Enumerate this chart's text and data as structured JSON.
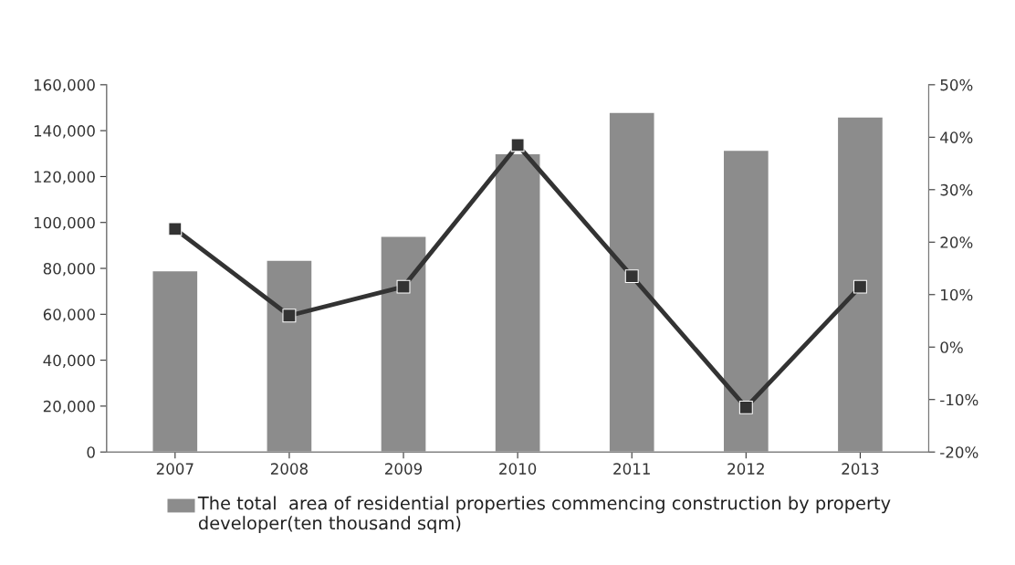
{
  "chart_data": {
    "type": "bar",
    "categories": [
      "2007",
      "2008",
      "2009",
      "2010",
      "2011",
      "2012",
      "2013"
    ],
    "series": [
      {
        "name": "The total  area of residential properties commencing construction by property developer(ten thousand sqm)",
        "color": "#8c8c8c",
        "values": [
          79000,
          83600,
          94000,
          130000,
          148000,
          131500,
          146000
        ]
      },
      {
        "type": "line",
        "axis": "y2",
        "color": "#333333",
        "values": [
          22.5,
          6,
          11.5,
          38.5,
          13.5,
          -11.5,
          11.5
        ]
      }
    ],
    "ylim": [
      0,
      160000
    ],
    "yticks": [
      0,
      {
        "value": 20000,
        "label": "20,000"
      },
      {
        "value": 40000,
        "label": "40,000"
      },
      {
        "value": 60000,
        "label": "60,000"
      },
      {
        "value": 80000,
        "label": "80,000"
      },
      {
        "value": 100000,
        "label": "100,000"
      },
      {
        "value": 120000,
        "label": "120,000"
      },
      {
        "value": 140000,
        "label": "140,000"
      },
      {
        "value": 160000,
        "label": "160,000"
      }
    ],
    "y2lim": [
      -20,
      50
    ],
    "y2ticks": [
      {
        "value": -20,
        "label": "-20%"
      },
      {
        "value": -10,
        "label": "-10%"
      },
      {
        "value": 0,
        "label": "0%"
      },
      {
        "value": 10,
        "label": "10%"
      },
      {
        "value": 20,
        "label": "20%"
      },
      {
        "value": 30,
        "label": "30%"
      },
      {
        "value": 40,
        "label": "40%"
      },
      {
        "value": 50,
        "label": "50%"
      }
    ],
    "marker": "square",
    "line_style": "solid",
    "grid": false,
    "legend": "bottom"
  }
}
